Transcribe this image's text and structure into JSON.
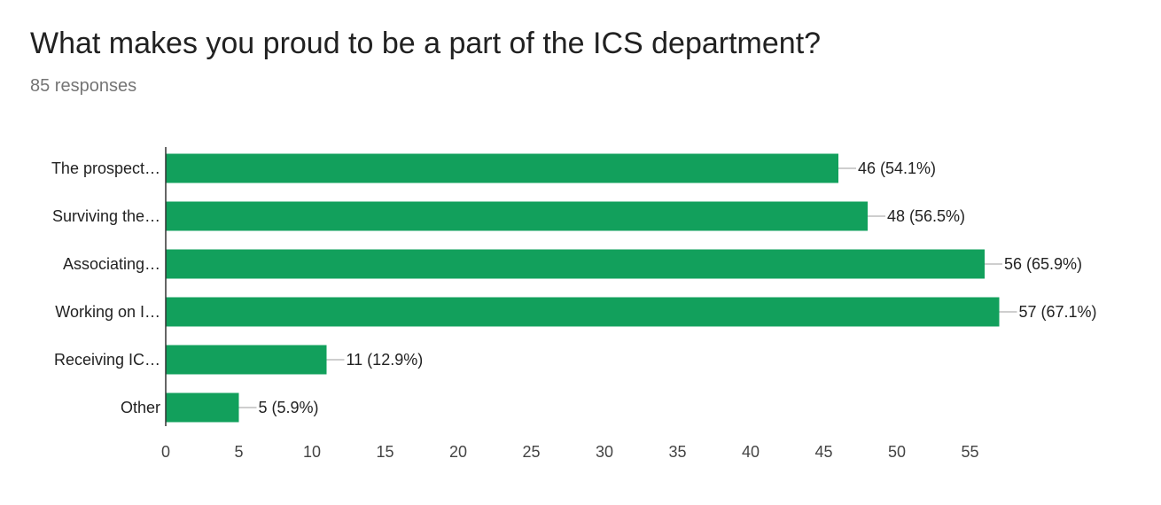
{
  "title": "What makes you proud to be a part of the ICS department?",
  "response_count": "85 responses",
  "chart_data": {
    "type": "bar",
    "orientation": "horizontal",
    "categories": [
      "The prospect…",
      "Surviving the…",
      "Associating…",
      "Working on I…",
      "Receiving IC…",
      "Other"
    ],
    "values": [
      46,
      48,
      56,
      57,
      11,
      5
    ],
    "value_labels": [
      "46 (54.1%)",
      "48 (56.5%)",
      "56 (65.9%)",
      "57 (67.1%)",
      "11 (12.9%)",
      "5 (5.9%)"
    ],
    "xlim": [
      0,
      57
    ],
    "xticks": [
      0,
      5,
      10,
      15,
      20,
      25,
      30,
      35,
      40,
      45,
      50,
      55
    ],
    "grid": false,
    "bar_color": "#12a05c",
    "connector_color": "#9e9e9e",
    "axis_color": "#333333",
    "label_color": "#222222"
  }
}
